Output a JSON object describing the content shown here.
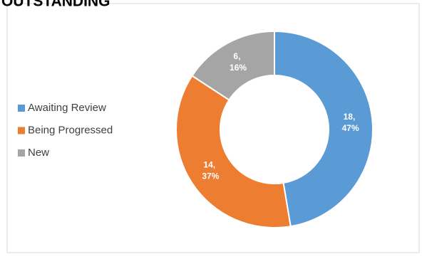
{
  "chart_data": {
    "type": "donut",
    "title": "OUTSTANDING",
    "categories": [
      "Awaiting Review",
      "Being Progressed",
      "New"
    ],
    "values": [
      18,
      14,
      6
    ],
    "value_labels": [
      "18, 47%",
      "14, 37%",
      "6, 16%"
    ],
    "colors": [
      "#5b9bd5",
      "#ed7d31",
      "#a5a5a5"
    ],
    "legend": "left"
  }
}
